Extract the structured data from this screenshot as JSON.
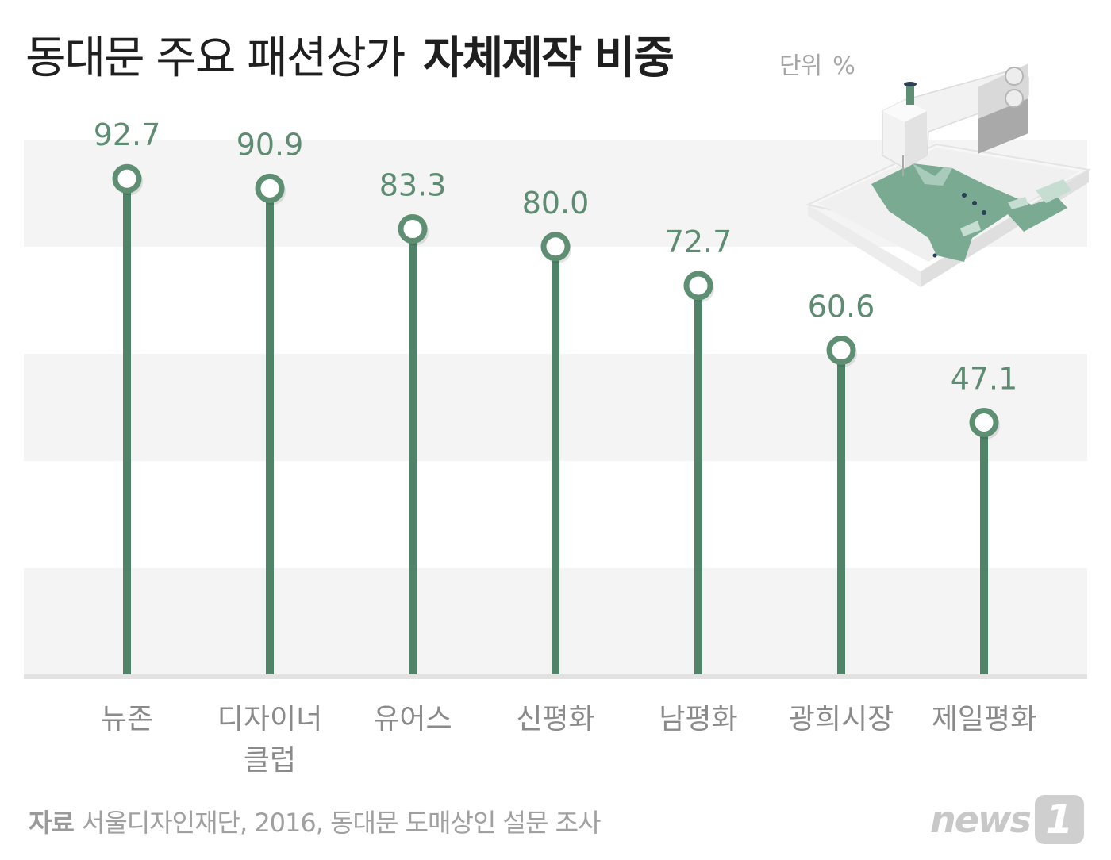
{
  "title": {
    "normal": "동대문 주요 패션상가",
    "strong": "자체제작 비중"
  },
  "unit": {
    "label": "단위",
    "symbol": "%"
  },
  "footer": {
    "source_label": "자료",
    "source_text": "서울디자인재단, 2016, 동대문 도매상인 설문 조사"
  },
  "brand": {
    "name": "news",
    "badge": "1"
  },
  "colors": {
    "stem": "#4f8468",
    "stem_dark": "#3f6e56",
    "marker_ring": "#5f8f73",
    "value_text": "#5e8c72",
    "band": "#f4f4f4",
    "baseline": "#e2e2e2",
    "category_text": "#8a8a8a"
  },
  "chart_data": {
    "type": "lollipop",
    "title": "동대문 주요 패션상가 자체제작 비중",
    "unit": "%",
    "categories": [
      [
        "뉴존"
      ],
      [
        "디자이너",
        "클럽"
      ],
      [
        "유어스"
      ],
      [
        "신평화"
      ],
      [
        "남평화"
      ],
      [
        "광희시장"
      ],
      [
        "제일평화"
      ]
    ],
    "values": [
      92.7,
      90.9,
      83.3,
      80.0,
      72.7,
      60.6,
      47.1
    ],
    "value_labels": [
      "92.7",
      "90.9",
      "83.3",
      "80.0",
      "72.7",
      "60.6",
      "47.1"
    ],
    "ylim": [
      0,
      100
    ],
    "grid": "alternating horizontal bands",
    "legend": "none"
  }
}
